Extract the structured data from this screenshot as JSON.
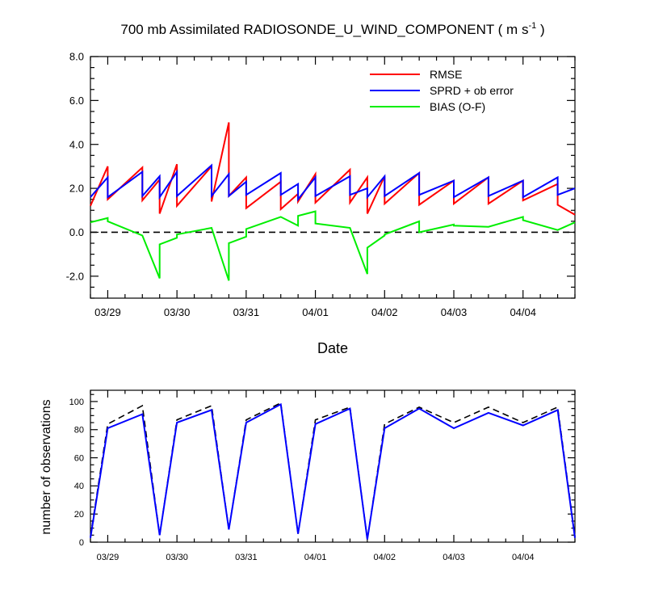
{
  "title": {
    "main": "700 mb Assimilated RADIOSONDE_U_WIND_COMPONENT ( m s",
    "sup": "-1",
    "end": " )"
  },
  "chart_data": [
    {
      "type": "line",
      "xlabel": "Date",
      "ylabel": "",
      "x_tick_labels": [
        "03/29",
        "03/30",
        "03/31",
        "04/01",
        "04/02",
        "04/03",
        "04/04"
      ],
      "x_tick_positions": [
        0.5,
        1.5,
        2.5,
        3.5,
        4.5,
        5.5,
        6.5
      ],
      "xlim": [
        0.25,
        7.25
      ],
      "ylim": [
        -3,
        8
      ],
      "y_ticks": [
        -2,
        0,
        2,
        4,
        6,
        8
      ],
      "y_tick_labels": [
        "-2.0",
        "0.0",
        "2.0",
        "4.0",
        "6.0",
        "8.0"
      ],
      "zero_line": true,
      "legend_position": "top-right",
      "series": [
        {
          "name": "RMSE",
          "color": "#ff0000",
          "segments": [
            [
              [
                0.25,
                1.2
              ],
              [
                0.5,
                3.0
              ]
            ],
            [
              [
                0.5,
                1.5
              ],
              [
                1.0,
                2.95
              ]
            ],
            [
              [
                1.0,
                1.45
              ],
              [
                1.25,
                2.4
              ]
            ],
            [
              [
                1.25,
                0.85
              ],
              [
                1.5,
                3.1
              ]
            ],
            [
              [
                1.5,
                1.2
              ],
              [
                2.0,
                3.0
              ]
            ],
            [
              [
                2.0,
                1.4
              ],
              [
                2.25,
                5.0
              ]
            ],
            [
              [
                2.25,
                1.65
              ],
              [
                2.5,
                2.5
              ]
            ],
            [
              [
                2.5,
                1.1
              ],
              [
                3.0,
                2.3
              ]
            ],
            [
              [
                3.0,
                1.05
              ],
              [
                3.25,
                1.75
              ]
            ],
            [
              [
                3.25,
                1.4
              ],
              [
                3.5,
                2.65
              ]
            ],
            [
              [
                3.5,
                1.35
              ],
              [
                4.0,
                2.85
              ]
            ],
            [
              [
                4.0,
                1.35
              ],
              [
                4.25,
                2.5
              ]
            ],
            [
              [
                4.25,
                0.85
              ],
              [
                4.5,
                2.55
              ]
            ],
            [
              [
                4.5,
                1.3
              ],
              [
                5.0,
                2.7
              ]
            ],
            [
              [
                5.0,
                1.25
              ],
              [
                5.5,
                2.35
              ]
            ],
            [
              [
                5.5,
                1.3
              ],
              [
                6.0,
                2.5
              ]
            ],
            [
              [
                6.0,
                1.3
              ],
              [
                6.5,
                2.35
              ]
            ],
            [
              [
                6.5,
                1.45
              ],
              [
                7.0,
                2.2
              ]
            ],
            [
              [
                7.0,
                1.25
              ],
              [
                7.25,
                0.8
              ]
            ]
          ]
        },
        {
          "name": "SPRD + ob error",
          "color": "#0000ff",
          "segments": [
            [
              [
                0.25,
                1.6
              ],
              [
                0.5,
                2.5
              ]
            ],
            [
              [
                0.5,
                1.6
              ],
              [
                1.0,
                2.75
              ]
            ],
            [
              [
                1.0,
                1.65
              ],
              [
                1.25,
                2.55
              ]
            ],
            [
              [
                1.25,
                1.6
              ],
              [
                1.5,
                2.75
              ]
            ],
            [
              [
                1.5,
                1.65
              ],
              [
                2.0,
                3.05
              ]
            ],
            [
              [
                2.0,
                1.65
              ],
              [
                2.25,
                2.65
              ]
            ],
            [
              [
                2.25,
                1.65
              ],
              [
                2.5,
                2.3
              ]
            ],
            [
              [
                2.5,
                1.7
              ],
              [
                3.0,
                2.7
              ]
            ],
            [
              [
                3.0,
                1.7
              ],
              [
                3.25,
                2.2
              ]
            ],
            [
              [
                3.25,
                1.5
              ],
              [
                3.5,
                2.5
              ]
            ],
            [
              [
                3.5,
                1.65
              ],
              [
                4.0,
                2.55
              ]
            ],
            [
              [
                4.0,
                1.7
              ],
              [
                4.25,
                2.0
              ]
            ],
            [
              [
                4.25,
                1.6
              ],
              [
                4.5,
                2.55
              ]
            ],
            [
              [
                4.5,
                1.65
              ],
              [
                5.0,
                2.7
              ]
            ],
            [
              [
                5.0,
                1.7
              ],
              [
                5.5,
                2.35
              ]
            ],
            [
              [
                5.5,
                1.6
              ],
              [
                6.0,
                2.5
              ]
            ],
            [
              [
                6.0,
                1.65
              ],
              [
                6.5,
                2.35
              ]
            ],
            [
              [
                6.5,
                1.6
              ],
              [
                7.0,
                2.5
              ]
            ],
            [
              [
                7.0,
                1.7
              ],
              [
                7.25,
                2.0
              ]
            ]
          ]
        },
        {
          "name": "BIAS (O-F)",
          "color": "#00ee00",
          "segments": [
            [
              [
                0.25,
                0.45
              ],
              [
                0.5,
                0.65
              ]
            ],
            [
              [
                0.5,
                0.5
              ],
              [
                1.0,
                -0.15
              ]
            ],
            [
              [
                1.0,
                -0.15
              ],
              [
                1.25,
                -2.1
              ]
            ],
            [
              [
                1.25,
                -0.55
              ],
              [
                1.5,
                -0.25
              ]
            ],
            [
              [
                1.5,
                -0.1
              ],
              [
                2.0,
                0.2
              ]
            ],
            [
              [
                2.0,
                0.2
              ],
              [
                2.25,
                -2.2
              ]
            ],
            [
              [
                2.25,
                -0.5
              ],
              [
                2.5,
                -0.2
              ]
            ],
            [
              [
                2.5,
                0.15
              ],
              [
                3.0,
                0.7
              ]
            ],
            [
              [
                3.0,
                0.7
              ],
              [
                3.25,
                0.3
              ]
            ],
            [
              [
                3.25,
                0.75
              ],
              [
                3.5,
                0.95
              ]
            ],
            [
              [
                3.5,
                0.4
              ],
              [
                4.0,
                0.2
              ]
            ],
            [
              [
                4.0,
                0.2
              ],
              [
                4.25,
                -1.9
              ]
            ],
            [
              [
                4.25,
                -0.7
              ],
              [
                4.5,
                -0.15
              ]
            ],
            [
              [
                4.5,
                -0.1
              ],
              [
                5.0,
                0.5
              ]
            ],
            [
              [
                5.0,
                0.0
              ],
              [
                5.5,
                0.35
              ]
            ],
            [
              [
                5.5,
                0.3
              ],
              [
                6.0,
                0.25
              ]
            ],
            [
              [
                6.0,
                0.25
              ],
              [
                6.5,
                0.7
              ]
            ],
            [
              [
                6.5,
                0.55
              ],
              [
                7.0,
                0.1
              ]
            ],
            [
              [
                7.0,
                0.1
              ],
              [
                7.25,
                0.45
              ]
            ]
          ]
        }
      ]
    },
    {
      "type": "line",
      "xlabel": "",
      "ylabel": "number of observations",
      "x_tick_labels": [
        "03/29",
        "03/30",
        "03/31",
        "04/01",
        "04/02",
        "04/03",
        "04/04"
      ],
      "x_tick_positions": [
        0.5,
        1.5,
        2.5,
        3.5,
        4.5,
        5.5,
        6.5
      ],
      "xlim": [
        0.25,
        7.25
      ],
      "ylim": [
        0,
        108
      ],
      "y_ticks": [
        0,
        20,
        40,
        60,
        80,
        100
      ],
      "y_tick_labels": [
        "0",
        "20",
        "40",
        "60",
        "80",
        "100"
      ],
      "series": [
        {
          "name": "",
          "color": "#0000ff",
          "style": "solid",
          "points": [
            [
              0.25,
              3
            ],
            [
              0.5,
              81
            ],
            [
              1.0,
              91
            ],
            [
              1.25,
              5
            ],
            [
              1.5,
              85
            ],
            [
              2.0,
              94
            ],
            [
              2.25,
              9
            ],
            [
              2.5,
              85
            ],
            [
              3.0,
              98
            ],
            [
              3.25,
              6
            ],
            [
              3.5,
              84
            ],
            [
              4.0,
              95
            ],
            [
              4.25,
              2
            ],
            [
              4.5,
              81
            ],
            [
              5.0,
              95
            ],
            [
              5.5,
              81
            ],
            [
              6.0,
              92
            ],
            [
              6.5,
              83
            ],
            [
              7.0,
              94
            ],
            [
              7.25,
              3
            ]
          ]
        },
        {
          "name": "",
          "color": "#000000",
          "style": "dashed",
          "points": [
            [
              0.25,
              4
            ],
            [
              0.5,
              84
            ],
            [
              1.0,
              97
            ],
            [
              1.25,
              5
            ],
            [
              1.5,
              87
            ],
            [
              2.0,
              97
            ],
            [
              2.25,
              9
            ],
            [
              2.5,
              87
            ],
            [
              3.0,
              99
            ],
            [
              3.25,
              6
            ],
            [
              3.5,
              87
            ],
            [
              4.0,
              96
            ],
            [
              4.25,
              2
            ],
            [
              4.5,
              84
            ],
            [
              5.0,
              96
            ],
            [
              5.5,
              85
            ],
            [
              6.0,
              96
            ],
            [
              6.5,
              85
            ],
            [
              7.0,
              96
            ],
            [
              7.25,
              4
            ]
          ]
        }
      ]
    }
  ]
}
